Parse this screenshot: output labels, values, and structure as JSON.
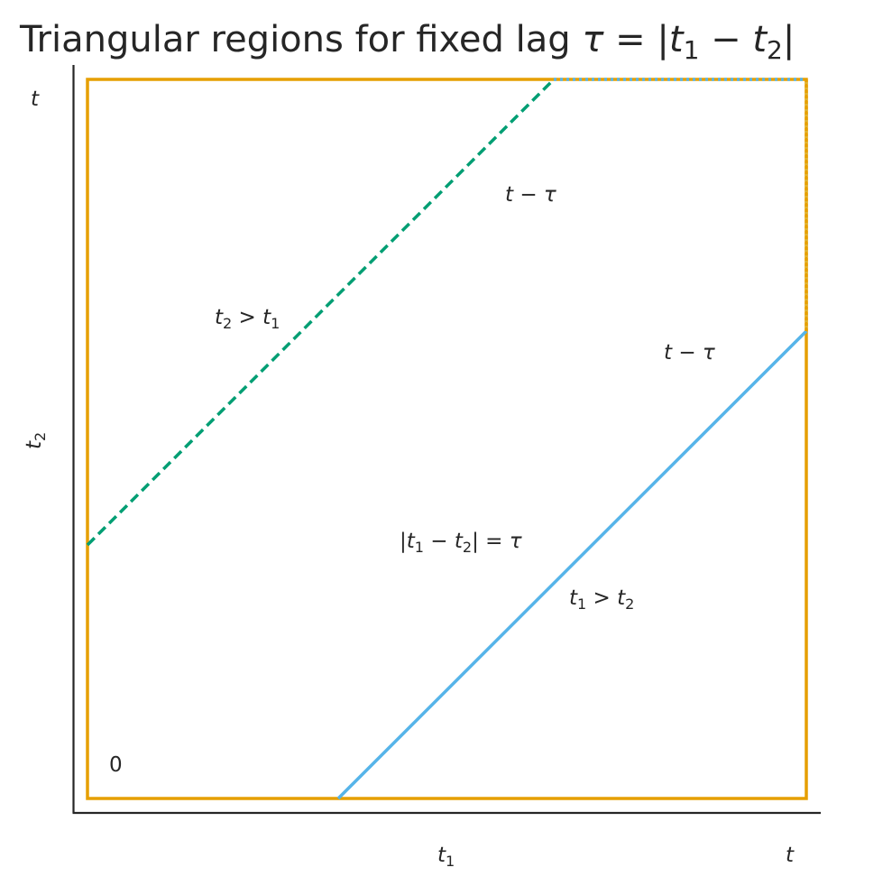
{
  "title": {
    "prefix": "Triangular regions for fixed lag ",
    "tau": "τ",
    "eq": " = |",
    "t": "t",
    "sub1": "1",
    "minus": " − ",
    "sub2": "2",
    "bar": "|"
  },
  "axes": {
    "x_label": {
      "var": "t",
      "sub": "1"
    },
    "y_label": {
      "var": "t",
      "sub": "2"
    },
    "x_max_tick": "t",
    "y_max_tick": "t",
    "origin_label": "0"
  },
  "annotations": {
    "upper_segment": {
      "t": "t",
      "rest": " − τ"
    },
    "right_segment": {
      "t": "t",
      "rest": " − τ"
    },
    "upper_region": {
      "a": "t",
      "a_sub": "2",
      "op": " > ",
      "b": "t",
      "b_sub": "1"
    },
    "lower_region": {
      "a": "t",
      "a_sub": "1",
      "op": " > ",
      "b": "t",
      "b_sub": "2"
    },
    "lag_condition": {
      "open": "|",
      "a": "t",
      "a_sub": "1",
      "op": " − ",
      "b": "t",
      "b_sub": "2",
      "close": "| = ",
      "tau": "τ"
    }
  },
  "colors": {
    "square": "#E69F00",
    "upper_line": "#009E73",
    "lower_line": "#56B4E9",
    "axis": "#262626",
    "text": "#262626"
  },
  "model": {
    "t": 1.0,
    "tau": 0.35,
    "square_stroke": "solid",
    "upper_line_stroke": "dashed",
    "lower_line_stroke": "solid",
    "top_edge_overlay": "blue dotted over orange",
    "right_edge_overlay": "orange dotted (above lower line)"
  }
}
